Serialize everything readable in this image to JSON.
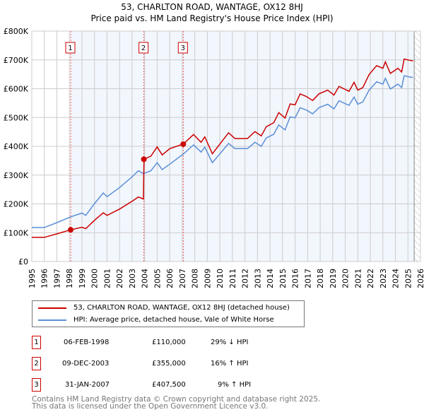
{
  "title_line1": "53, CHARLTON ROAD, WANTAGE, OX12 8HJ",
  "title_line2": "Price paid vs. HM Land Registry's House Price Index (HPI)",
  "chart_data": {
    "type": "line",
    "title": "53, CHARLTON ROAD, WANTAGE, OX12 8HJ - Price paid vs. HM Land Registry's House Price Index (HPI)",
    "xlim": [
      1995,
      2026
    ],
    "ylim": [
      0,
      800000
    ],
    "x_ticks": [
      1995,
      1996,
      1997,
      1998,
      1999,
      2000,
      2001,
      2002,
      2003,
      2004,
      2005,
      2006,
      2007,
      2008,
      2009,
      2010,
      2011,
      2012,
      2013,
      2014,
      2015,
      2016,
      2017,
      2018,
      2019,
      2020,
      2021,
      2022,
      2023,
      2024,
      2025,
      2026
    ],
    "y_ticks": [
      {
        "v": 0,
        "label": "£0"
      },
      {
        "v": 100000,
        "label": "£100K"
      },
      {
        "v": 200000,
        "label": "£200K"
      },
      {
        "v": 300000,
        "label": "£300K"
      },
      {
        "v": 400000,
        "label": "£400K"
      },
      {
        "v": 500000,
        "label": "£500K"
      },
      {
        "v": 600000,
        "label": "£600K"
      },
      {
        "v": 700000,
        "label": "£700K"
      },
      {
        "v": 800000,
        "label": "£800K"
      }
    ],
    "grid": true,
    "forecast_hatch_from": 2025.5,
    "shaded_from": 1998.1,
    "series": [
      {
        "name": "53, CHARLTON ROAD, WANTAGE, OX12 8HJ (detached house)",
        "color": "#cc0000",
        "x": [
          1995,
          1996,
          1997,
          1998.1,
          1999,
          1999.3,
          2000,
          2000.7,
          2001,
          2002,
          2003,
          2003.5,
          2003.9,
          2003.95,
          2004.5,
          2005,
          2005.4,
          2006,
          2007.08,
          2007.9,
          2008.5,
          2008.8,
          2009.4,
          2010.7,
          2011.2,
          2012.2,
          2012.8,
          2013.3,
          2013.7,
          2014.3,
          2014.7,
          2015.2,
          2015.6,
          2016.0,
          2016.4,
          2016.9,
          2017.4,
          2017.9,
          2018.6,
          2019.1,
          2019.5,
          2020.3,
          2020.7,
          2021.0,
          2021.4,
          2021.9,
          2022.5,
          2023.0,
          2023.2,
          2023.6,
          2024.2,
          2024.5,
          2024.7,
          2025.1,
          2025.4
        ],
        "y": [
          84000,
          84000,
          96000,
          110000,
          119000,
          114000,
          143000,
          169000,
          160000,
          182000,
          209000,
          224000,
          217000,
          355000,
          366000,
          398000,
          370000,
          392000,
          407500,
          441000,
          414000,
          433000,
          374000,
          447000,
          427000,
          427000,
          451000,
          436000,
          468000,
          482000,
          517000,
          498000,
          547000,
          544000,
          582000,
          573000,
          559000,
          582000,
          595000,
          578000,
          608000,
          591000,
          622000,
          595000,
          604000,
          649000,
          680000,
          671000,
          693000,
          653000,
          671000,
          658000,
          703000,
          699000,
          697000
        ]
      },
      {
        "name": "HPI: Average price, detached house, Vale of White Horse",
        "color": "#5b8fd6",
        "x": [
          1995,
          1996,
          1997,
          1998.1,
          1999,
          1999.3,
          2000,
          2000.7,
          2001,
          2002,
          2003,
          2003.5,
          2003.9,
          2004.5,
          2005,
          2005.4,
          2006,
          2007.08,
          2007.9,
          2008.5,
          2008.8,
          2009.4,
          2010.7,
          2011.2,
          2012.2,
          2012.8,
          2013.3,
          2013.7,
          2014.3,
          2014.7,
          2015.2,
          2015.6,
          2016.0,
          2016.4,
          2016.9,
          2017.4,
          2017.9,
          2018.6,
          2019.1,
          2019.5,
          2020.3,
          2020.7,
          2021.0,
          2021.4,
          2021.9,
          2022.5,
          2023.0,
          2023.2,
          2023.6,
          2024.2,
          2024.5,
          2024.7,
          2025.1,
          2025.4
        ],
        "y": [
          118000,
          118000,
          135000,
          155000,
          168000,
          160000,
          201000,
          238000,
          225000,
          257000,
          294000,
          315000,
          305000,
          315000,
          343000,
          319000,
          338000,
          373000,
          405000,
          380000,
          397000,
          343000,
          410000,
          392000,
          392000,
          414000,
          400000,
          429000,
          442000,
          474000,
          457000,
          502000,
          499000,
          534000,
          526000,
          513000,
          534000,
          546000,
          530000,
          558000,
          542000,
          571000,
          546000,
          554000,
          595000,
          624000,
          616000,
          636000,
          599000,
          616000,
          604000,
          645000,
          641000,
          639000
        ]
      }
    ],
    "sales": [
      {
        "n": "1",
        "x": 1998.1,
        "y": 110000
      },
      {
        "n": "2",
        "x": 2003.94,
        "y": 355000
      },
      {
        "n": "3",
        "x": 2007.08,
        "y": 407500
      }
    ]
  },
  "legend": [
    {
      "label": "53, CHARLTON ROAD, WANTAGE, OX12 8HJ (detached house)",
      "color": "#cc0000"
    },
    {
      "label": "HPI: Average price, detached house, Vale of White Horse",
      "color": "#5b8fd6"
    }
  ],
  "transactions": [
    {
      "n": "1",
      "date": "06-FEB-1998",
      "price": "£110,000",
      "hpi": "29% ↓ HPI"
    },
    {
      "n": "2",
      "date": "09-DEC-2003",
      "price": "£355,000",
      "hpi": "16% ↑ HPI"
    },
    {
      "n": "3",
      "date": "31-JAN-2007",
      "price": "£407,500",
      "hpi": "9% ↑ HPI"
    }
  ],
  "footer_line1": "Contains HM Land Registry data © Crown copyright and database right 2025.",
  "footer_line2": "This data is licensed under the Open Government Licence v3.0."
}
